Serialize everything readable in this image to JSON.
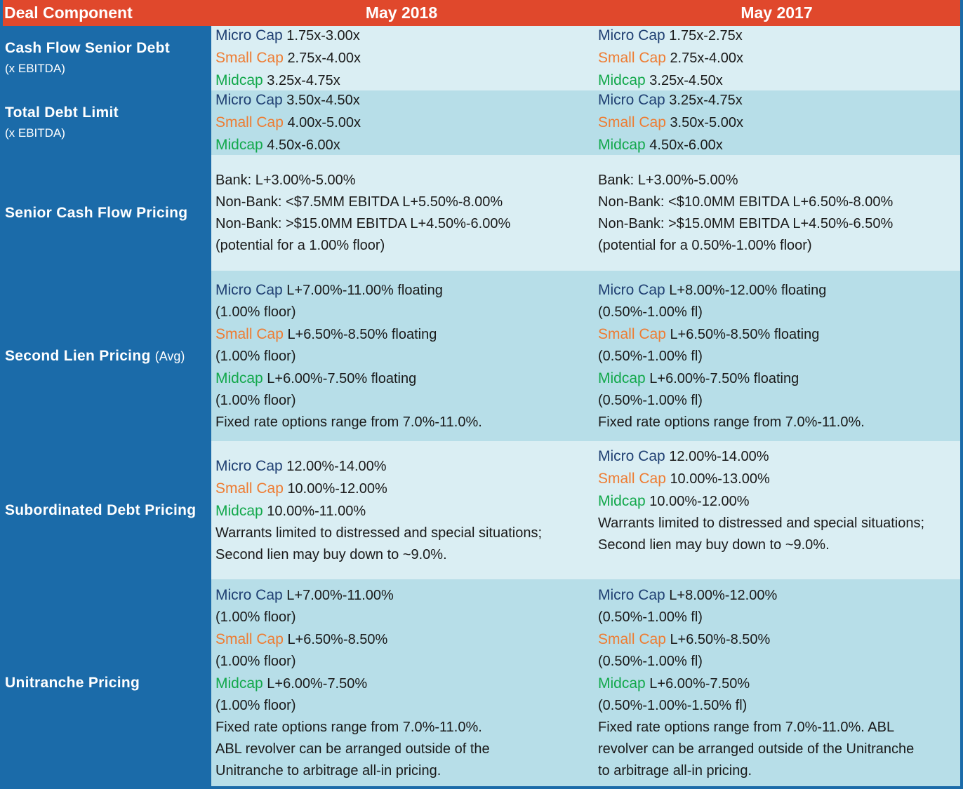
{
  "header": {
    "label": "Deal Component",
    "col1": "May 2018",
    "col2": "May 2017"
  },
  "tiers": {
    "micro": "Micro Cap",
    "small": "Small Cap",
    "mid": "Midcap"
  },
  "rows": [
    {
      "label": "Cash Flow Senior Debt",
      "sublabel": "(x EBITDA)",
      "col1": {
        "micro": "1.75x-3.00x",
        "small": "2.75x-4.00x",
        "mid": "3.25x-4.75x"
      },
      "col2": {
        "micro": "1.75x-2.75x",
        "small": "2.75x-4.00x",
        "mid": "3.25x-4.50x"
      }
    },
    {
      "label": "Total Debt Limit",
      "sublabel": "(x EBITDA)",
      "col1": {
        "micro": "3.50x-4.50x",
        "small": "4.00x-5.00x",
        "mid": "4.50x-6.00x"
      },
      "col2": {
        "micro": "3.25x-4.75x",
        "small": "3.50x-5.00x",
        "mid": "4.50x-6.00x"
      }
    },
    {
      "label": "Senior Cash Flow Pricing",
      "col1": {
        "lines": [
          "Bank: L+3.00%-5.00%",
          "Non-Bank: <$7.5MM EBITDA L+5.50%-8.00%",
          "Non-Bank: >$15.0MM EBITDA L+4.50%-6.00%",
          "(potential for a 1.00% floor)"
        ]
      },
      "col2": {
        "lines": [
          "Bank: L+3.00%-5.00%",
          "Non-Bank: <$10.0MM EBITDA L+6.50%-8.00%",
          "Non-Bank: >$15.0MM EBITDA L+4.50%-6.50%",
          "(potential for a 0.50%-1.00% floor)"
        ]
      }
    },
    {
      "label": "Second Lien Pricing",
      "label_suffix": "(Avg)",
      "col1": {
        "micro": "L+7.00%-11.00% floating",
        "micro_note": "(1.00% floor)",
        "small": "L+6.50%-8.50% floating",
        "small_note": "(1.00% floor)",
        "mid": "L+6.00%-7.50% floating",
        "mid_note": "(1.00% floor)",
        "extra": [
          "Fixed rate options range from 7.0%-11.0%."
        ]
      },
      "col2": {
        "micro": "L+8.00%-12.00% floating",
        "micro_note": "(0.50%-1.00% fl)",
        "small": "L+6.50%-8.50% floating",
        "small_note": "(0.50%-1.00% fl)",
        "mid": "L+6.00%-7.50% floating",
        "mid_note": "(0.50%-1.00% fl)",
        "extra": [
          "Fixed rate options range from 7.0%-11.0%."
        ]
      }
    },
    {
      "label": "Subordinated Debt Pricing",
      "col1": {
        "micro": "12.00%-14.00%",
        "small": "10.00%-12.00%",
        "mid": "10.00%-11.00%",
        "extra": [
          "Warrants limited to distressed and special situations;",
          "Second lien may buy down to ~9.0%."
        ]
      },
      "col2": {
        "micro": "12.00%-14.00%",
        "small": "10.00%-13.00%",
        "mid": "10.00%-12.00%",
        "extra": [
          "Warrants limited to distressed and special situations;",
          "Second lien may buy down to ~9.0%."
        ]
      }
    },
    {
      "label": "Unitranche Pricing",
      "col1": {
        "micro": "L+7.00%-11.00%",
        "micro_note": "(1.00% floor)",
        "small": "L+6.50%-8.50%",
        "small_note": "(1.00% floor)",
        "mid": "L+6.00%-7.50%",
        "mid_note": "(1.00% floor)",
        "extra": [
          "Fixed rate options range from 7.0%-11.0%.",
          "ABL revolver can be arranged outside of the",
          "Unitranche to arbitrage all-in pricing."
        ]
      },
      "col2": {
        "micro": "L+8.00%-12.00%",
        "micro_note": "(0.50%-1.00% fl)",
        "small": "L+6.50%-8.50%",
        "small_note": "(0.50%-1.00% fl)",
        "mid": "L+6.00%-7.50%",
        "mid_note": "(0.50%-1.00%-1.50% fl)",
        "extra": [
          "Fixed rate options range from 7.0%-11.0%. ABL",
          "revolver can be arranged outside of the Unitranche",
          "to arbitrage all-in pricing."
        ]
      }
    }
  ],
  "colors": {
    "header_bg": "#E0482C",
    "label_bg": "#1B6BA9",
    "row_light": "#DAEEF3",
    "row_dark": "#B7DEE8",
    "micro_cap": "#1F3F72",
    "small_cap": "#EE7C32",
    "midcap": "#12A84B"
  }
}
